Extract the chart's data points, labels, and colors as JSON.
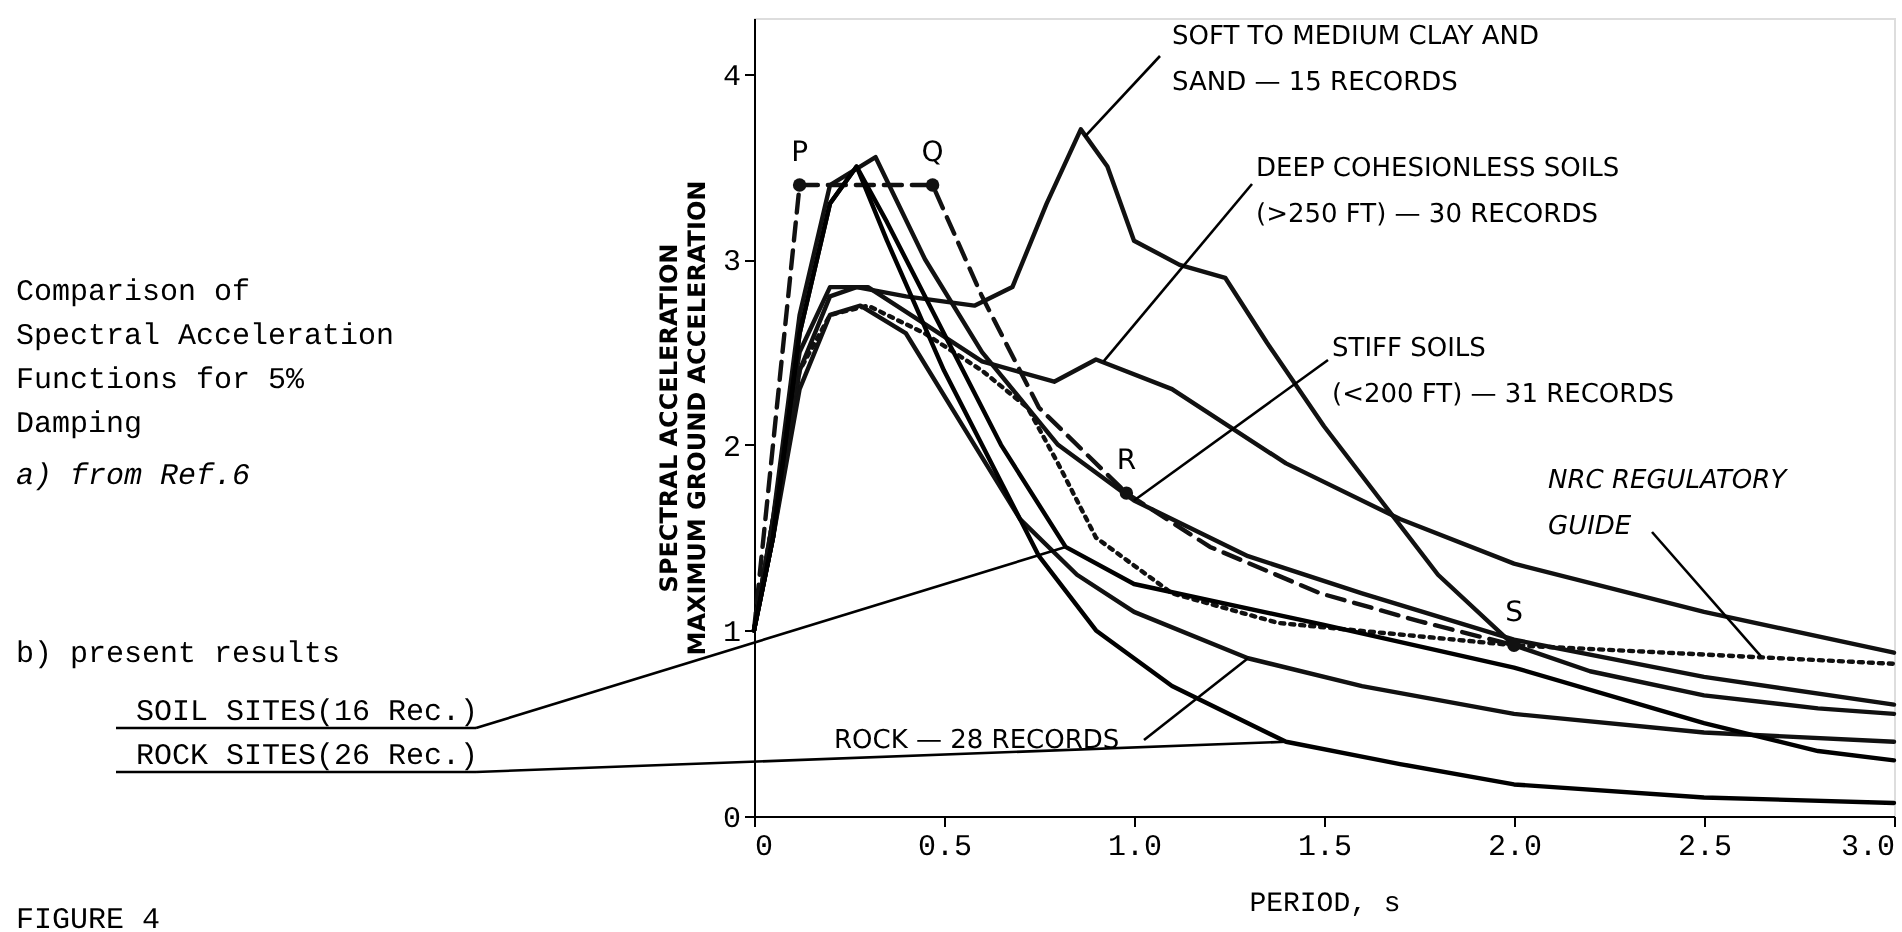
{
  "chart_data": {
    "type": "line",
    "title": "Comparison of Spectral Acceleration Functions for 5% Damping",
    "xlabel": "PERIOD, s",
    "ylabel": "SPECTRAL ACCELERATION MAXIMUM GROUND ACCELERATION",
    "xlim": [
      0,
      3.0
    ],
    "xticks": [
      0,
      0.5,
      {
        "value": 1,
        "label": "1.0"
      },
      1.5,
      {
        "value": 2,
        "label": "2.0"
      },
      2.5,
      {
        "value": 3,
        "label": "3.0"
      }
    ],
    "ylim": [
      0,
      4.3
    ],
    "yticks": [
      0,
      1,
      2,
      3,
      4
    ],
    "grid": false,
    "series": [
      {
        "color": "#111111",
        "line_style": "solid",
        "x": [
          0,
          0.05,
          0.12,
          0.2,
          0.27,
          0.4,
          0.58,
          0.68,
          0.77,
          0.86,
          0.93,
          1.0,
          1.12,
          1.24,
          1.35,
          1.5,
          1.65,
          1.8,
          2.0,
          2.2,
          2.5,
          2.8,
          3.0
        ],
        "values": [
          1.0,
          1.5,
          2.4,
          2.8,
          2.85,
          2.8,
          2.75,
          2.85,
          3.3,
          3.7,
          3.5,
          3.1,
          2.97,
          2.9,
          2.55,
          2.1,
          1.7,
          1.3,
          0.92,
          0.78,
          0.65,
          0.58,
          0.55
        ]
      },
      {
        "color": "#111111",
        "line_style": "solid",
        "x": [
          0,
          0.05,
          0.12,
          0.2,
          0.3,
          0.45,
          0.6,
          0.79,
          0.9,
          1.1,
          1.4,
          1.7,
          2.0,
          2.5,
          3.0
        ],
        "values": [
          1.0,
          1.6,
          2.5,
          2.85,
          2.85,
          2.65,
          2.45,
          2.34,
          2.46,
          2.3,
          1.9,
          1.6,
          1.36,
          1.1,
          0.88
        ]
      },
      {
        "color": "#111111",
        "line_style": "solid",
        "x": [
          0,
          0.05,
          0.12,
          0.2,
          0.32,
          0.45,
          0.6,
          0.8,
          1.0,
          1.3,
          1.6,
          2.0,
          2.5,
          3.0
        ],
        "values": [
          1.0,
          1.6,
          2.7,
          3.4,
          3.55,
          3.0,
          2.5,
          2.0,
          1.7,
          1.4,
          1.2,
          0.95,
          0.75,
          0.6
        ]
      },
      {
        "color": "#111111",
        "line_style": "solid",
        "x": [
          0,
          0.05,
          0.12,
          0.2,
          0.28,
          0.4,
          0.55,
          0.7,
          0.85,
          1.0,
          1.3,
          1.6,
          2.0,
          2.5,
          3.0
        ],
        "values": [
          1.0,
          1.5,
          2.3,
          2.7,
          2.75,
          2.6,
          2.1,
          1.6,
          1.3,
          1.1,
          0.85,
          0.7,
          0.55,
          0.45,
          0.4
        ]
      },
      {
        "color": "#111111",
        "line_style": "dashed",
        "x": [
          0,
          0.12,
          0.47,
          0.6,
          0.75,
          0.98,
          1.2,
          1.49,
          1.75,
          2.0
        ],
        "values": [
          1.0,
          3.4,
          3.4,
          2.8,
          2.2,
          1.74,
          1.45,
          1.2,
          1.05,
          0.92
        ]
      },
      {
        "color": "#111111",
        "line_style": "dotted",
        "x": [
          0,
          0.05,
          0.12,
          0.2,
          0.3,
          0.45,
          0.6,
          0.72,
          0.8,
          0.9,
          1.1,
          1.38,
          2.0,
          2.7,
          3.0
        ],
        "values": [
          1.0,
          1.6,
          2.4,
          2.7,
          2.75,
          2.6,
          2.4,
          2.2,
          1.9,
          1.5,
          1.2,
          1.04,
          0.92,
          0.85,
          0.82
        ]
      },
      {
        "color": "#000000",
        "line_style": "solid",
        "x": [
          0,
          0.05,
          0.12,
          0.2,
          0.27,
          0.35,
          0.5,
          0.65,
          0.82,
          1.0,
          1.5,
          2.0,
          2.5,
          2.8,
          3.0
        ],
        "values": [
          1.0,
          1.5,
          2.6,
          3.3,
          3.5,
          3.2,
          2.6,
          2.0,
          1.45,
          1.25,
          1.03,
          0.8,
          0.5,
          0.35,
          0.3
        ]
      },
      {
        "color": "#000000",
        "line_style": "solid",
        "x": [
          0,
          0.05,
          0.12,
          0.2,
          0.27,
          0.35,
          0.5,
          0.65,
          0.75,
          0.9,
          1.1,
          1.4,
          1.7,
          2.0,
          2.5,
          3.0
        ],
        "values": [
          1.0,
          1.5,
          2.6,
          3.3,
          3.5,
          3.1,
          2.4,
          1.8,
          1.4,
          1.0,
          0.7,
          0.4,
          0.28,
          0.17,
          0.1,
          0.07
        ]
      },
      {
        "type": "scatter",
        "marker": "circle",
        "color": "#111111",
        "x": [
          0.12,
          0.47,
          0.98,
          2.0
        ],
        "values": [
          3.4,
          3.4,
          1.74,
          0.92
        ]
      }
    ],
    "annotations": [
      "a) from Ref.6",
      "b) present results",
      {
        "text": "SOIL SITES(16 Rec.)",
        "x": 0.82,
        "y": 1.45
      },
      {
        "text": "ROCK SITES(26 Rec.)",
        "x": 1.4,
        "y": 0.4
      },
      "FIGURE 4",
      {
        "text": "SOFT TO MEDIUM CLAY AND SAND — 15 RECORDS",
        "x": 0.87,
        "y": 3.66
      },
      {
        "text": "DEEP COHESIONLESS SOILS (>250 FT) — 30 RECORDS",
        "x": 0.92,
        "y": 2.45
      },
      {
        "text": "STIFF SOILS (<200 FT) — 31 RECORDS",
        "x": 1.0,
        "y": 1.7
      },
      {
        "text": "NRC REGULATORY GUIDE",
        "x": 2.65,
        "y": 0.86
      },
      {
        "text": "ROCK — 28 RECORDS",
        "x": 1.3,
        "y": 0.85
      },
      {
        "text": "P",
        "x": 0.12,
        "y": 3.4
      },
      {
        "text": "Q",
        "x": 0.47,
        "y": 3.4
      },
      {
        "text": "R",
        "x": 0.98,
        "y": 1.74
      },
      {
        "text": "S",
        "x": 2.0,
        "y": 0.92
      }
    ]
  }
}
